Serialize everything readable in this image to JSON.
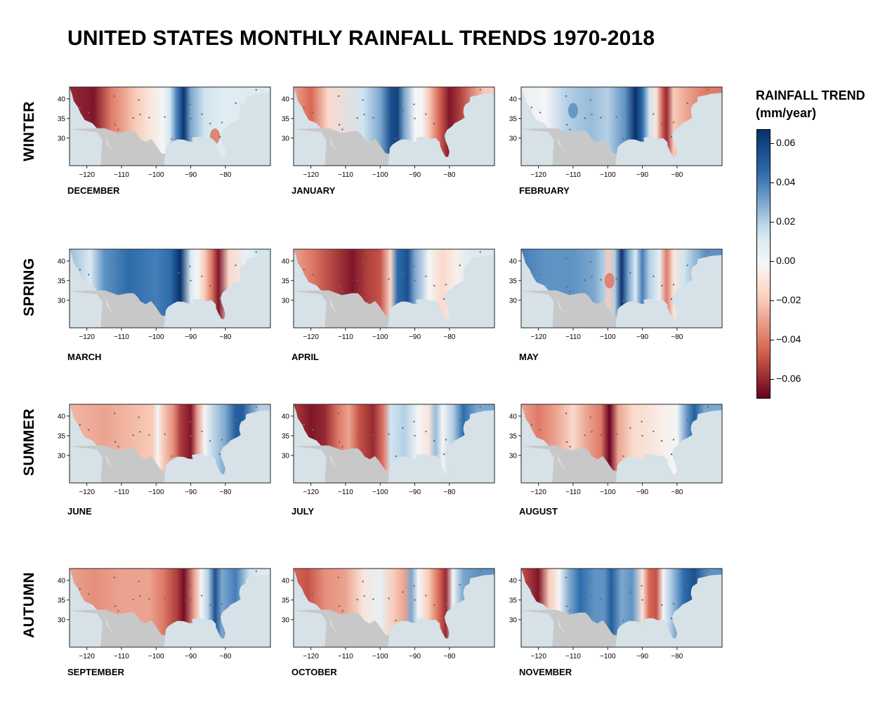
{
  "title": "UNITED STATES MONTHLY RAINFALL TRENDS 1970-2018",
  "colors": {
    "strong_positive": "#08306b",
    "positive": "#2f6fb0",
    "light_positive": "#d1e5f0",
    "neutral": "#f7f7f7",
    "light_negative": "#fbd3c0",
    "negative": "#d6604d",
    "strong_negative": "#67001f",
    "land_outside": "#c8c8c8",
    "ocean": "#d6e1e8"
  },
  "colorbar": {
    "title_line1": "RAINFALL TREND",
    "title_line2": "(mm/year)",
    "ticks": [
      "0.06",
      "0.04",
      "0.02",
      "0.00",
      "−0.02",
      "−0.04",
      "−0.06"
    ]
  },
  "seasons": [
    "WINTER",
    "SPRING",
    "SUMMER",
    "AUTUMN"
  ],
  "axes": {
    "x_ticks": [
      "−120",
      "−110",
      "−100",
      "−90",
      "−80"
    ],
    "y_ticks": [
      "40",
      "35",
      "30"
    ]
  },
  "chart_data": {
    "type": "heatmap",
    "title": "UNITED STATES MONTHLY RAINFALL TRENDS 1970-2018",
    "colorbar_label": "RAINFALL TREND (mm/year)",
    "color_range": [
      -0.07,
      0.067
    ],
    "xlim": [
      -125,
      -67
    ],
    "ylim": [
      23,
      43
    ],
    "x_ticks": [
      -120,
      -110,
      -100,
      -90,
      -80
    ],
    "y_ticks": [
      30,
      35,
      40
    ],
    "panels": [
      {
        "month": "DECEMBER",
        "season": "WINTER",
        "profile": [
          [
            -125,
            -0.06
          ],
          [
            -118,
            -0.065
          ],
          [
            -113,
            -0.04
          ],
          [
            -106,
            -0.02
          ],
          [
            -102,
            -0.01
          ],
          [
            -98,
            0.0
          ],
          [
            -96,
            0.015
          ],
          [
            -94,
            0.04
          ],
          [
            -92,
            0.065
          ],
          [
            -90,
            0.03
          ],
          [
            -86,
            0.015
          ],
          [
            -80,
            0.008
          ],
          [
            -70,
            0.01
          ]
        ],
        "spots": [
          {
            "lon": -83,
            "lat": 30.5,
            "value": -0.04
          }
        ]
      },
      {
        "month": "JANUARY",
        "season": "WINTER",
        "profile": [
          [
            -125,
            -0.03
          ],
          [
            -120,
            -0.045
          ],
          [
            -115,
            -0.015
          ],
          [
            -105,
            0.015
          ],
          [
            -100,
            0.03
          ],
          [
            -97,
            0.055
          ],
          [
            -95,
            0.06
          ],
          [
            -93,
            0.03
          ],
          [
            -90,
            0.0
          ],
          [
            -88,
            0.0
          ],
          [
            -86,
            -0.02
          ],
          [
            -83,
            -0.045
          ],
          [
            -80,
            -0.065
          ],
          [
            -77,
            -0.055
          ],
          [
            -73,
            -0.035
          ],
          [
            -70,
            -0.02
          ]
        ],
        "spots": []
      },
      {
        "month": "FEBRUARY",
        "season": "WINTER",
        "profile": [
          [
            -125,
            0.005
          ],
          [
            -118,
            0.0
          ],
          [
            -112,
            0.02
          ],
          [
            -105,
            0.025
          ],
          [
            -100,
            0.02
          ],
          [
            -95,
            0.035
          ],
          [
            -92,
            0.067
          ],
          [
            -90,
            0.045
          ],
          [
            -88,
            0.015
          ],
          [
            -86,
            -0.01
          ],
          [
            -84,
            -0.05
          ],
          [
            -83,
            -0.06
          ],
          [
            -81,
            -0.02
          ],
          [
            -77,
            -0.03
          ],
          [
            -72,
            -0.04
          ]
        ],
        "spots": [
          {
            "lon": -110,
            "lat": 37,
            "value": 0.035
          }
        ]
      },
      {
        "month": "MARCH",
        "season": "SPRING",
        "profile": [
          [
            -125,
            0.025
          ],
          [
            -119,
            0.01
          ],
          [
            -115,
            0.035
          ],
          [
            -108,
            0.045
          ],
          [
            -100,
            0.04
          ],
          [
            -96,
            0.045
          ],
          [
            -93,
            0.067
          ],
          [
            -90,
            0.01
          ],
          [
            -88,
            0.0
          ],
          [
            -86,
            -0.02
          ],
          [
            -84,
            -0.04
          ],
          [
            -82,
            -0.065
          ],
          [
            -79,
            -0.015
          ],
          [
            -74,
            0.005
          ],
          [
            -70,
            0.015
          ]
        ],
        "spots": []
      },
      {
        "month": "APRIL",
        "season": "SPRING",
        "profile": [
          [
            -125,
            -0.03
          ],
          [
            -120,
            -0.04
          ],
          [
            -113,
            -0.055
          ],
          [
            -108,
            -0.065
          ],
          [
            -104,
            -0.055
          ],
          [
            -100,
            -0.05
          ],
          [
            -97,
            -0.015
          ],
          [
            -95,
            0.045
          ],
          [
            -92,
            0.055
          ],
          [
            -90,
            0.03
          ],
          [
            -86,
            0.0
          ],
          [
            -82,
            -0.015
          ],
          [
            -78,
            -0.005
          ],
          [
            -74,
            0.01
          ],
          [
            -70,
            0.01
          ]
        ],
        "spots": []
      },
      {
        "month": "MAY",
        "season": "SPRING",
        "profile": [
          [
            -125,
            0.04
          ],
          [
            -118,
            0.035
          ],
          [
            -110,
            0.035
          ],
          [
            -104,
            0.03
          ],
          [
            -101,
            0.02
          ],
          [
            -100,
            -0.02
          ],
          [
            -98,
            0.02
          ],
          [
            -96,
            0.065
          ],
          [
            -94,
            0.03
          ],
          [
            -92,
            0.01
          ],
          [
            -90,
            0.04
          ],
          [
            -88,
            0.02
          ],
          [
            -85,
            0.005
          ],
          [
            -83,
            -0.04
          ],
          [
            -81,
            -0.01
          ],
          [
            -78,
            0.015
          ],
          [
            -72,
            0.035
          ]
        ],
        "spots": [
          {
            "lon": -99.5,
            "lat": 35,
            "value": -0.04
          }
        ]
      },
      {
        "month": "JUNE",
        "season": "SUMMER",
        "profile": [
          [
            -125,
            -0.025
          ],
          [
            -115,
            -0.03
          ],
          [
            -108,
            -0.025
          ],
          [
            -101,
            -0.02
          ],
          [
            -99.5,
            0.0
          ],
          [
            -98,
            -0.02
          ],
          [
            -95,
            -0.035
          ],
          [
            -93,
            -0.055
          ],
          [
            -90,
            -0.065
          ],
          [
            -88,
            -0.03
          ],
          [
            -86,
            0.0
          ],
          [
            -83,
            0.02
          ],
          [
            -80,
            0.03
          ],
          [
            -77,
            0.05
          ],
          [
            -75,
            0.05
          ],
          [
            -70,
            0.02
          ]
        ],
        "spots": []
      },
      {
        "month": "JULY",
        "season": "SUMMER",
        "profile": [
          [
            -125,
            -0.055
          ],
          [
            -120,
            -0.065
          ],
          [
            -116,
            -0.06
          ],
          [
            -112,
            -0.04
          ],
          [
            -109,
            -0.03
          ],
          [
            -106,
            -0.05
          ],
          [
            -102,
            -0.06
          ],
          [
            -99,
            -0.04
          ],
          [
            -97,
            0.015
          ],
          [
            -93,
            0.02
          ],
          [
            -89,
            0.0
          ],
          [
            -86,
            -0.01
          ],
          [
            -84,
            0.025
          ],
          [
            -82,
            0.0
          ],
          [
            -79,
            0.02
          ],
          [
            -76,
            0.045
          ],
          [
            -72,
            0.03
          ]
        ],
        "spots": []
      },
      {
        "month": "AUGUST",
        "season": "SUMMER",
        "profile": [
          [
            -125,
            -0.03
          ],
          [
            -120,
            -0.04
          ],
          [
            -115,
            -0.03
          ],
          [
            -110,
            -0.015
          ],
          [
            -106,
            -0.03
          ],
          [
            -102,
            -0.04
          ],
          [
            -99.5,
            -0.07
          ],
          [
            -97,
            -0.03
          ],
          [
            -93,
            -0.015
          ],
          [
            -88,
            -0.01
          ],
          [
            -84,
            -0.005
          ],
          [
            -80,
            0.0
          ],
          [
            -77,
            0.035
          ],
          [
            -75,
            0.05
          ],
          [
            -72,
            0.03
          ]
        ],
        "spots": []
      },
      {
        "month": "SEPTEMBER",
        "season": "AUTUMN",
        "profile": [
          [
            -125,
            -0.03
          ],
          [
            -118,
            -0.035
          ],
          [
            -110,
            -0.03
          ],
          [
            -102,
            -0.03
          ],
          [
            -98,
            -0.04
          ],
          [
            -94,
            -0.055
          ],
          [
            -92,
            -0.067
          ],
          [
            -89,
            -0.03
          ],
          [
            -87,
            0.0
          ],
          [
            -85,
            0.02
          ],
          [
            -83,
            0.055
          ],
          [
            -81,
            0.03
          ],
          [
            -77,
            0.04
          ],
          [
            -73,
            0.015
          ],
          [
            -70,
            0.01
          ]
        ],
        "spots": []
      },
      {
        "month": "OCTOBER",
        "season": "AUTUMN",
        "profile": [
          [
            -125,
            -0.045
          ],
          [
            -121,
            -0.05
          ],
          [
            -116,
            -0.035
          ],
          [
            -110,
            -0.03
          ],
          [
            -105,
            -0.01
          ],
          [
            -100,
            0.005
          ],
          [
            -96,
            -0.02
          ],
          [
            -93,
            -0.03
          ],
          [
            -91,
            0.03
          ],
          [
            -89,
            0.0
          ],
          [
            -86,
            -0.02
          ],
          [
            -83,
            -0.045
          ],
          [
            -81,
            -0.06
          ],
          [
            -79,
            0.0
          ],
          [
            -76,
            0.03
          ],
          [
            -72,
            0.035
          ]
        ],
        "spots": []
      },
      {
        "month": "NOVEMBER",
        "season": "AUTUMN",
        "profile": [
          [
            -125,
            -0.05
          ],
          [
            -120,
            -0.065
          ],
          [
            -117,
            -0.02
          ],
          [
            -114,
            0.0
          ],
          [
            -111,
            0.03
          ],
          [
            -108,
            0.045
          ],
          [
            -104,
            0.035
          ],
          [
            -101,
            0.035
          ],
          [
            -99,
            0.05
          ],
          [
            -96,
            0.03
          ],
          [
            -93,
            0.035
          ],
          [
            -90,
            -0.01
          ],
          [
            -88,
            -0.045
          ],
          [
            -86,
            -0.05
          ],
          [
            -84,
            0.0
          ],
          [
            -82,
            0.02
          ],
          [
            -78,
            0.045
          ],
          [
            -75,
            0.055
          ],
          [
            -71,
            0.035
          ]
        ],
        "spots": []
      }
    ]
  }
}
